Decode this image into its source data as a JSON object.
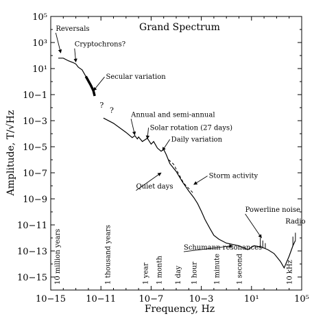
{
  "chart_data": {
    "type": "line",
    "title": "Grand Spectrum",
    "xlabel": "Frequency, Hz",
    "ylabel": "Amplitude, T/√Hz",
    "x_scale": "log",
    "y_scale": "log",
    "xlim_exp": [
      -15,
      5
    ],
    "ylim_exp": [
      -16,
      5
    ],
    "x_tick_exponents": [
      -15,
      -11,
      -7,
      -3,
      1,
      5
    ],
    "y_tick_exponents": [
      5,
      3,
      1,
      -1,
      -3,
      -5,
      -7,
      -9,
      -11,
      -13,
      -15
    ],
    "x_tick_labels": [
      "10−15",
      "10−11",
      "10−7",
      "10−3",
      "10¹",
      "10⁵"
    ],
    "y_tick_labels": [
      "10⁵",
      "10³",
      "10¹",
      "10−1",
      "10−3",
      "10−5",
      "10−7",
      "10−9",
      "10−11",
      "10−13",
      "10−15"
    ],
    "grid": false,
    "series": [
      {
        "style": "solid",
        "points_log": [
          [
            -14.4,
            1.8
          ],
          [
            -14.0,
            1.8
          ],
          [
            -13.6,
            1.6
          ],
          [
            -13.2,
            1.45
          ],
          [
            -13.0,
            1.35
          ],
          [
            -12.8,
            1.1
          ],
          [
            -12.5,
            0.9
          ],
          [
            -12.2,
            0.4
          ],
          [
            -11.8,
            -0.3
          ],
          [
            -11.6,
            -0.7
          ],
          [
            -11.5,
            -1.1
          ]
        ]
      },
      {
        "style": "solid",
        "points_log": [
          [
            -10.8,
            -2.8
          ],
          [
            -10.0,
            -3.2
          ],
          [
            -9.0,
            -3.9
          ],
          [
            -8.5,
            -4.3
          ],
          [
            -8.3,
            -4.15
          ],
          [
            -8.1,
            -4.4
          ],
          [
            -8.0,
            -4.25
          ],
          [
            -7.7,
            -4.6
          ],
          [
            -7.3,
            -4.35
          ],
          [
            -7.0,
            -4.8
          ],
          [
            -6.8,
            -4.6
          ],
          [
            -6.5,
            -5.1
          ],
          [
            -6.2,
            -5.35
          ],
          [
            -6.0,
            -5.2
          ],
          [
            -5.8,
            -5.6
          ],
          [
            -5.5,
            -6.3
          ],
          [
            -5.0,
            -6.9
          ],
          [
            -4.5,
            -7.7
          ],
          [
            -4.0,
            -8.4
          ],
          [
            -3.6,
            -8.9
          ],
          [
            -3.3,
            -9.35
          ],
          [
            -3.0,
            -9.95
          ],
          [
            -2.7,
            -10.6
          ],
          [
            -2.3,
            -11.3
          ],
          [
            -2.0,
            -11.8
          ],
          [
            -1.6,
            -12.1
          ],
          [
            -1.0,
            -12.4
          ],
          [
            0.0,
            -12.6
          ],
          [
            0.7,
            -12.9
          ],
          [
            1.2,
            -12.6
          ],
          [
            1.8,
            -12.7
          ],
          [
            2.3,
            -12.9
          ],
          [
            2.8,
            -13.2
          ],
          [
            3.3,
            -13.8
          ],
          [
            3.6,
            -14.3
          ],
          [
            4.0,
            -13.4
          ],
          [
            4.3,
            -12.6
          ],
          [
            4.5,
            -12.2
          ]
        ]
      },
      {
        "style": "dashed",
        "points_log": [
          [
            -5.6,
            -6.0
          ],
          [
            -5.2,
            -6.35
          ],
          [
            -4.8,
            -7.1
          ],
          [
            -4.4,
            -7.8
          ],
          [
            -4.0,
            -8.2
          ],
          [
            -3.6,
            -8.6
          ]
        ]
      }
    ],
    "question_marks": [
      {
        "text": "?",
        "x_exp": -11.1,
        "y_exp": -2.0
      },
      {
        "text": "?",
        "x_exp": -10.3,
        "y_exp": -2.4
      }
    ],
    "annotations": [
      {
        "text": "Reversals",
        "x_exp": -14.6,
        "y_exp": 3.9,
        "arrow_to": [
          -14.2,
          2.2
        ]
      },
      {
        "text": "Cryptochrons?",
        "x_exp": -13.1,
        "y_exp": 2.7,
        "arrow_to": [
          -13.0,
          1.5
        ]
      },
      {
        "text": "Secular variation",
        "x_exp": -10.6,
        "y_exp": 0.2,
        "arrow_to": [
          -11.6,
          -0.7
        ]
      },
      {
        "text": "Annual and semi-annual",
        "x_exp": -8.6,
        "y_exp": -2.7,
        "arrow_to": [
          -8.3,
          -4.1
        ]
      },
      {
        "text": "Solar rotation (27 days)",
        "x_exp": -7.1,
        "y_exp": -3.7,
        "arrow_to": [
          -7.3,
          -4.4
        ]
      },
      {
        "text": "Daily variation",
        "x_exp": -5.4,
        "y_exp": -4.6,
        "arrow_to": [
          -6.1,
          -5.3
        ]
      },
      {
        "text": "Quiet days",
        "x_exp": -8.2,
        "y_exp": -8.2,
        "arrow_to": [
          -6.2,
          -7.0
        ]
      },
      {
        "text": "Storm activity",
        "x_exp": -2.4,
        "y_exp": -7.4,
        "arrow_to": [
          -3.6,
          -7.9
        ]
      },
      {
        "text": "Powerline noise",
        "x_exp": 0.5,
        "y_exp": -10.0,
        "arrow_to": [
          1.8,
          -12.0
        ]
      },
      {
        "text": "Radio",
        "x_exp": 3.7,
        "y_exp": -10.9,
        "arrow_to": null
      },
      {
        "text": "Schumann resonances",
        "x_exp": -4.4,
        "y_exp": -12.9,
        "arrow_to": [
          -0.5,
          -12.6
        ]
      }
    ],
    "time_markers": [
      {
        "text": "10 million years",
        "x_exp": -14.5
      },
      {
        "text": "1 thousand years",
        "x_exp": -10.5
      },
      {
        "text": "1 year",
        "x_exp": -7.5
      },
      {
        "text": "1 month",
        "x_exp": -6.4
      },
      {
        "text": "1 day",
        "x_exp": -4.9
      },
      {
        "text": "1 hour",
        "x_exp": -3.6
      },
      {
        "text": "1 minute",
        "x_exp": -1.8
      },
      {
        "text": "1 second",
        "x_exp": 0.0
      },
      {
        "text": "10 kHz",
        "x_exp": 4.0
      }
    ]
  }
}
